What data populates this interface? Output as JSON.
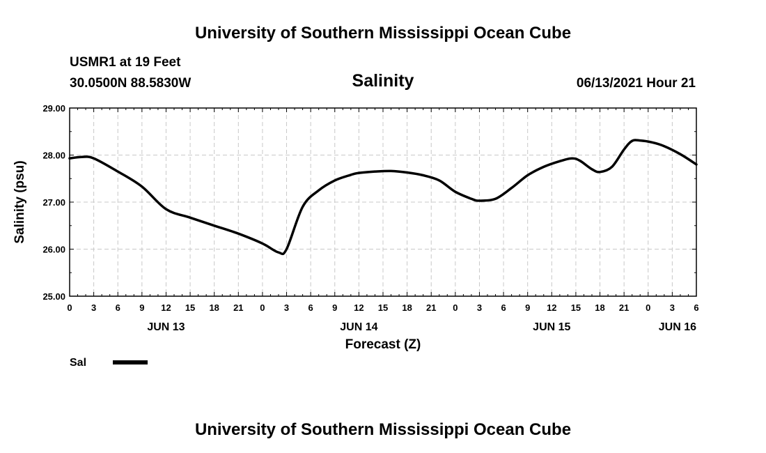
{
  "page": {
    "top_title": "University of Southern Mississippi Ocean Cube",
    "bottom_title": "University of Southern Mississippi Ocean Cube",
    "station": "USMR1 at 19 Feet",
    "coords": "30.0500N  88.5830W",
    "datetime": "06/13/2021 Hour 21"
  },
  "chart_data": {
    "type": "line",
    "title": "Salinity",
    "xlabel": "Forecast (Z)",
    "ylabel": "Salinity (psu)",
    "ylim": [
      25.0,
      29.0
    ],
    "xlim": [
      0,
      78
    ],
    "y_ticks": [
      "25.00",
      "26.00",
      "27.00",
      "28.00",
      "29.00"
    ],
    "x_ticks": [
      "0",
      "3",
      "6",
      "9",
      "12",
      "15",
      "18",
      "21",
      "0",
      "3",
      "6",
      "9",
      "12",
      "15",
      "18",
      "21",
      "0",
      "3",
      "6",
      "9",
      "12",
      "15",
      "18",
      "21",
      "0",
      "3",
      "6"
    ],
    "date_labels": [
      {
        "label": "JUN 13",
        "hour": 12
      },
      {
        "label": "JUN 14",
        "hour": 36
      },
      {
        "label": "JUN 15",
        "hour": 60
      },
      {
        "label": "JUN 16",
        "hour": 78
      }
    ],
    "grid": true,
    "line_color": "#000000",
    "series": [
      {
        "name": "Sal",
        "x": [
          0,
          1.5,
          3,
          6,
          9,
          12,
          15,
          18,
          21,
          24,
          26,
          27,
          29,
          31,
          33,
          35,
          36,
          38,
          40,
          42,
          44,
          46,
          48,
          50,
          51,
          53,
          55,
          57,
          59,
          61,
          62.5,
          63.5,
          65,
          66,
          67.5,
          69,
          70,
          71,
          72.5,
          74,
          76,
          78
        ],
        "y": [
          27.93,
          27.96,
          27.93,
          27.65,
          27.33,
          26.85,
          26.67,
          26.5,
          26.33,
          26.12,
          25.93,
          26.0,
          26.9,
          27.25,
          27.46,
          27.58,
          27.62,
          27.65,
          27.66,
          27.63,
          27.57,
          27.46,
          27.22,
          27.07,
          27.03,
          27.07,
          27.3,
          27.57,
          27.75,
          27.87,
          27.93,
          27.88,
          27.7,
          27.64,
          27.75,
          28.12,
          28.3,
          28.31,
          28.27,
          28.19,
          28.02,
          27.8
        ]
      }
    ]
  }
}
